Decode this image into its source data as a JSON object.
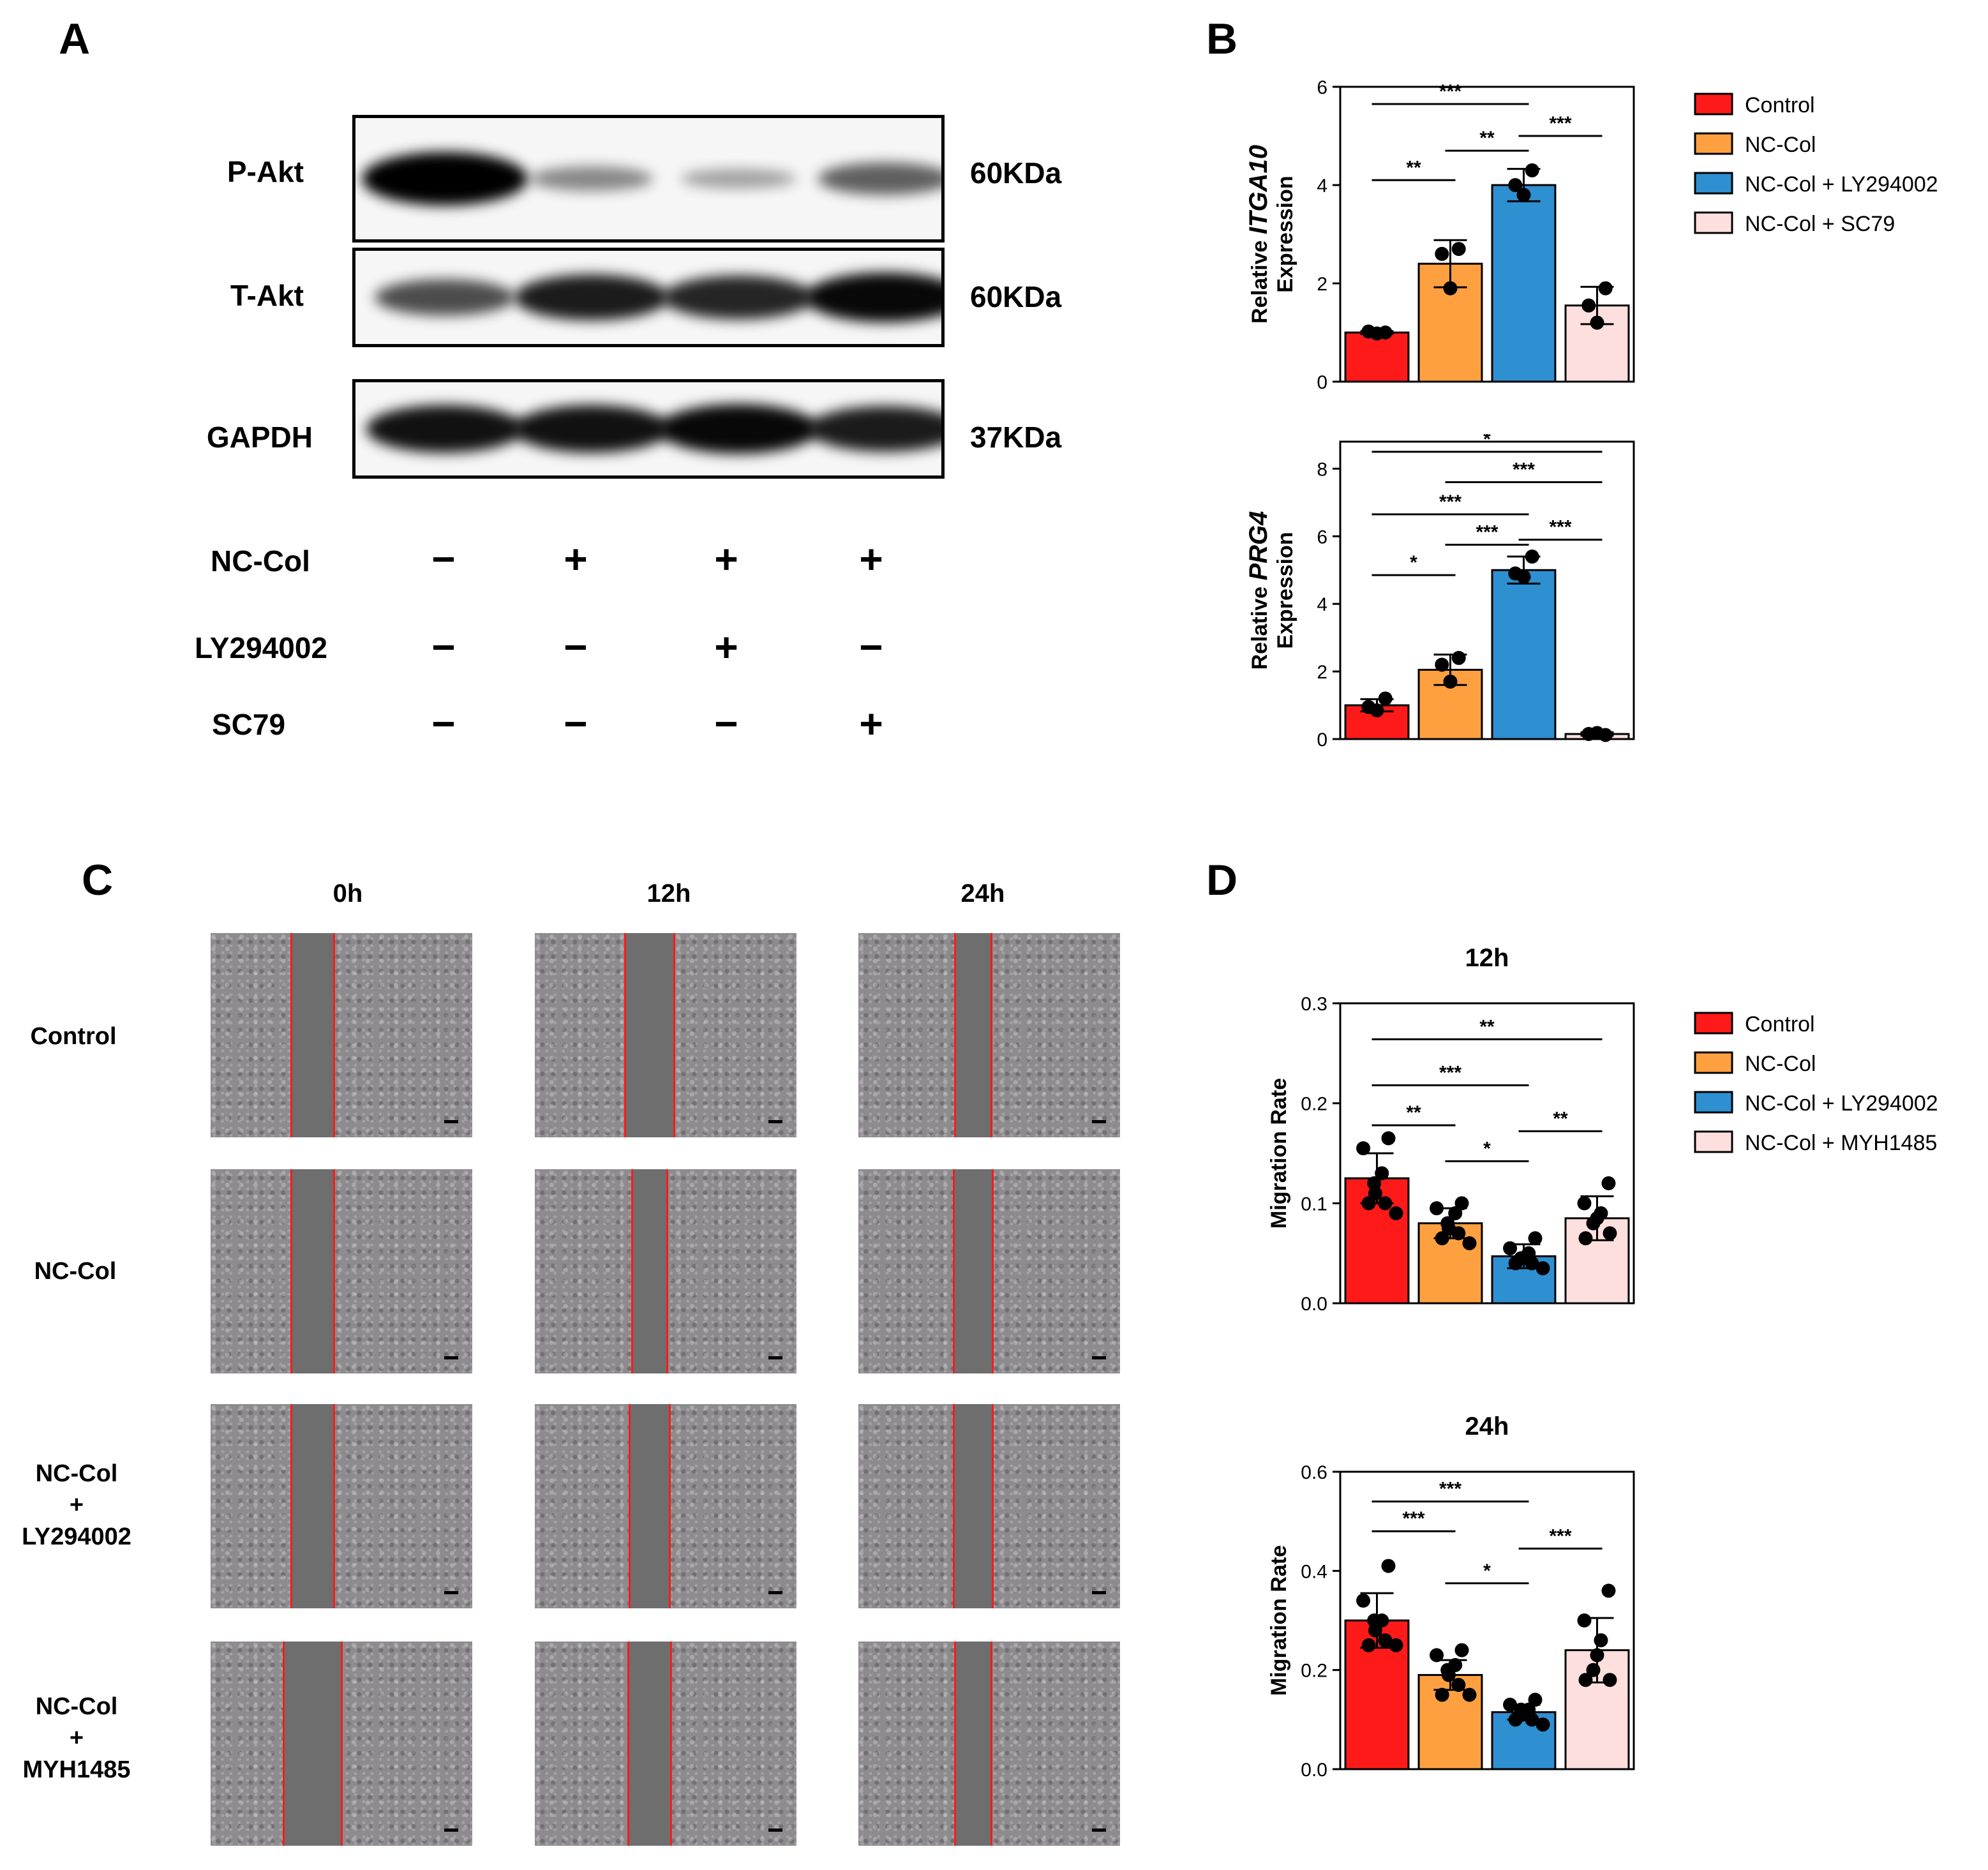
{
  "panels": {
    "a": "A",
    "b": "B",
    "c": "C",
    "d": "D"
  },
  "blot": {
    "rows": [
      {
        "label": "P-Akt",
        "kda": "60KDa",
        "bands": [
          1.0,
          0.25,
          0.12,
          0.45
        ]
      },
      {
        "label": "T-Akt",
        "kda": "60KDa",
        "bands": [
          0.55,
          0.8,
          0.75,
          0.9
        ]
      },
      {
        "label": "GAPDH",
        "kda": "37KDa",
        "bands": [
          0.85,
          0.85,
          0.9,
          0.8
        ]
      }
    ],
    "conditions": [
      {
        "label": "NC-Col",
        "signs": [
          "−",
          "+",
          "+",
          "+"
        ]
      },
      {
        "label": "LY294002",
        "signs": [
          "−",
          "−",
          "+",
          "−"
        ]
      },
      {
        "label": "SC79",
        "signs": [
          "−",
          "−",
          "−",
          "+"
        ]
      }
    ]
  },
  "scratch": {
    "timepoints": [
      "0h",
      "12h",
      "24h"
    ],
    "rows": [
      "Control",
      "NC-Col",
      "NC-Col\n+\nLY294002",
      "NC-Col\n+\nMYH1485"
    ]
  },
  "chart_data": [
    {
      "type": "bar",
      "ylabel_prefix": "Relative ",
      "ylabel_gene": "ITGA10",
      "ylabel_line2": "Expression",
      "ylim": [
        0,
        6
      ],
      "yticks": [
        0,
        2,
        4,
        6
      ],
      "series": [
        {
          "name": "Control",
          "color": "#ff1a1a",
          "mean": 1.0,
          "sd": 0.03,
          "points": [
            1.0,
            0.98,
            1.02
          ]
        },
        {
          "name": "NC-Col",
          "color": "#ffa040",
          "mean": 2.4,
          "sd": 0.48,
          "points": [
            2.7,
            1.9,
            2.6
          ]
        },
        {
          "name": "NC-Col + LY294002",
          "color": "#2e8fd1",
          "mean": 4.0,
          "sd": 0.33,
          "points": [
            4.3,
            3.8,
            4.0
          ]
        },
        {
          "name": "NC-Col + SC79",
          "color": "#fde0de",
          "mean": 1.55,
          "sd": 0.38,
          "points": [
            1.9,
            1.2,
            1.55
          ]
        }
      ],
      "sig": [
        {
          "from": 0,
          "to": 2,
          "label": "***",
          "y": 5.65
        },
        {
          "from": 1,
          "to": 2,
          "label": "**",
          "y": 4.7
        },
        {
          "from": 2,
          "to": 3,
          "label": "***",
          "y": 5.0
        },
        {
          "from": 0,
          "to": 1,
          "label": "**",
          "y": 4.1
        }
      ]
    },
    {
      "type": "bar",
      "ylabel_prefix": "Relative ",
      "ylabel_gene": "PRG4",
      "ylabel_line2": "Expression",
      "ylim": [
        0,
        8.8
      ],
      "yticks": [
        0,
        2,
        4,
        6,
        8
      ],
      "series": [
        {
          "name": "Control",
          "color": "#ff1a1a",
          "mean": 1.0,
          "sd": 0.18,
          "points": [
            1.2,
            0.85,
            0.95
          ]
        },
        {
          "name": "NC-Col",
          "color": "#ffa040",
          "mean": 2.05,
          "sd": 0.45,
          "points": [
            2.4,
            1.7,
            2.2
          ]
        },
        {
          "name": "NC-Col + LY294002",
          "color": "#2e8fd1",
          "mean": 5.0,
          "sd": 0.4,
          "points": [
            5.4,
            4.8,
            4.9
          ]
        },
        {
          "name": "NC-Col + SC79",
          "color": "#fde0de",
          "mean": 0.15,
          "sd": 0.05,
          "points": [
            0.12,
            0.18,
            0.15
          ]
        }
      ],
      "sig": [
        {
          "from": 0,
          "to": 3,
          "label": "*",
          "y": 8.5
        },
        {
          "from": 1,
          "to": 3,
          "label": "***",
          "y": 7.6
        },
        {
          "from": 0,
          "to": 2,
          "label": "***",
          "y": 6.65
        },
        {
          "from": 2,
          "to": 3,
          "label": "***",
          "y": 5.9
        },
        {
          "from": 1,
          "to": 2,
          "label": "***",
          "y": 5.75
        },
        {
          "from": 0,
          "to": 1,
          "label": "*",
          "y": 4.85
        }
      ]
    },
    {
      "type": "bar",
      "title": "12h",
      "ylabel": "Migration Rate",
      "ylim": [
        0,
        0.3
      ],
      "yticks": [
        0.0,
        0.1,
        0.2,
        0.3
      ],
      "series": [
        {
          "name": "Control",
          "color": "#ff1a1a",
          "mean": 0.125,
          "sd": 0.025,
          "points": [
            0.165,
            0.155,
            0.13,
            0.12,
            0.11,
            0.1,
            0.1,
            0.09
          ]
        },
        {
          "name": "NC-Col",
          "color": "#ffa040",
          "mean": 0.08,
          "sd": 0.015,
          "points": [
            0.1,
            0.095,
            0.09,
            0.08,
            0.075,
            0.07,
            0.065,
            0.06
          ]
        },
        {
          "name": "NC-Col + LY294002",
          "color": "#2e8fd1",
          "mean": 0.047,
          "sd": 0.012,
          "points": [
            0.065,
            0.055,
            0.05,
            0.045,
            0.045,
            0.04,
            0.04,
            0.035
          ]
        },
        {
          "name": "NC-Col + MYH1485",
          "color": "#fde0de",
          "mean": 0.085,
          "sd": 0.022,
          "points": [
            0.12,
            0.1,
            0.09,
            0.085,
            0.08,
            0.07,
            0.065
          ]
        }
      ],
      "sig": [
        {
          "from": 0,
          "to": 3,
          "label": "**",
          "y": 0.264
        },
        {
          "from": 0,
          "to": 2,
          "label": "***",
          "y": 0.218
        },
        {
          "from": 0,
          "to": 1,
          "label": "**",
          "y": 0.178
        },
        {
          "from": 2,
          "to": 3,
          "label": "**",
          "y": 0.172
        },
        {
          "from": 1,
          "to": 2,
          "label": "*",
          "y": 0.142
        }
      ]
    },
    {
      "type": "bar",
      "title": "24h",
      "ylabel": "Migration Rate",
      "ylim": [
        0,
        0.6
      ],
      "yticks": [
        0.0,
        0.2,
        0.4,
        0.6
      ],
      "series": [
        {
          "name": "Control",
          "color": "#ff1a1a",
          "mean": 0.3,
          "sd": 0.055,
          "points": [
            0.41,
            0.34,
            0.3,
            0.3,
            0.28,
            0.26,
            0.25,
            0.25
          ]
        },
        {
          "name": "NC-Col",
          "color": "#ffa040",
          "mean": 0.19,
          "sd": 0.03,
          "points": [
            0.24,
            0.23,
            0.21,
            0.2,
            0.19,
            0.17,
            0.15,
            0.15
          ]
        },
        {
          "name": "NC-Col + LY294002",
          "color": "#2e8fd1",
          "mean": 0.115,
          "sd": 0.015,
          "points": [
            0.14,
            0.13,
            0.12,
            0.12,
            0.11,
            0.1,
            0.1,
            0.09
          ]
        },
        {
          "name": "NC-Col + MYH1485",
          "color": "#fde0de",
          "mean": 0.24,
          "sd": 0.065,
          "points": [
            0.36,
            0.3,
            0.26,
            0.23,
            0.2,
            0.18,
            0.18
          ]
        }
      ],
      "sig": [
        {
          "from": 0,
          "to": 2,
          "label": "***",
          "y": 0.54
        },
        {
          "from": 0,
          "to": 1,
          "label": "***",
          "y": 0.48
        },
        {
          "from": 2,
          "to": 3,
          "label": "***",
          "y": 0.445
        },
        {
          "from": 1,
          "to": 2,
          "label": "*",
          "y": 0.375
        }
      ]
    }
  ],
  "legends": [
    [
      "Control",
      "NC-Col",
      "NC-Col + LY294002",
      "NC-Col + SC79"
    ],
    [
      "Control",
      "NC-Col",
      "NC-Col + LY294002",
      "NC-Col + MYH1485"
    ]
  ]
}
